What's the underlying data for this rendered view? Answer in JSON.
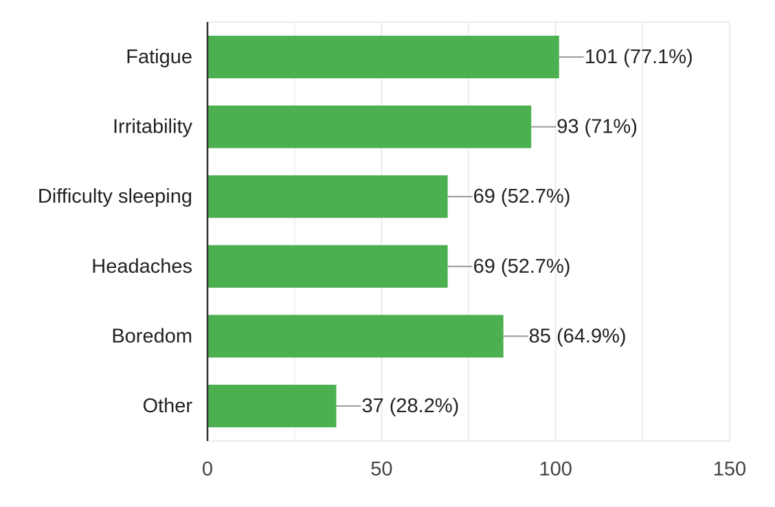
{
  "chart_data": {
    "type": "bar",
    "orientation": "horizontal",
    "categories": [
      "Fatigue",
      "Irritability",
      "Difficulty sleeping",
      "Headaches",
      "Boredom",
      "Other"
    ],
    "values": [
      101,
      93,
      69,
      69,
      85,
      37
    ],
    "data_labels": [
      "101 (77.1%)",
      "93 (71%)",
      "69 (52.7%)",
      "69 (52.7%)",
      "85 (64.9%)",
      "37 (28.2%)"
    ],
    "xlim": [
      0,
      150
    ],
    "x_ticks": [
      0,
      50,
      100,
      150
    ],
    "x_tick_labels": [
      "0",
      "50",
      "100",
      "150"
    ],
    "grid": true,
    "legend": "none",
    "colors": {
      "bar": "#4caf50",
      "grid": "#ebebeb",
      "axis": "#333333",
      "leader": "#999999"
    }
  }
}
